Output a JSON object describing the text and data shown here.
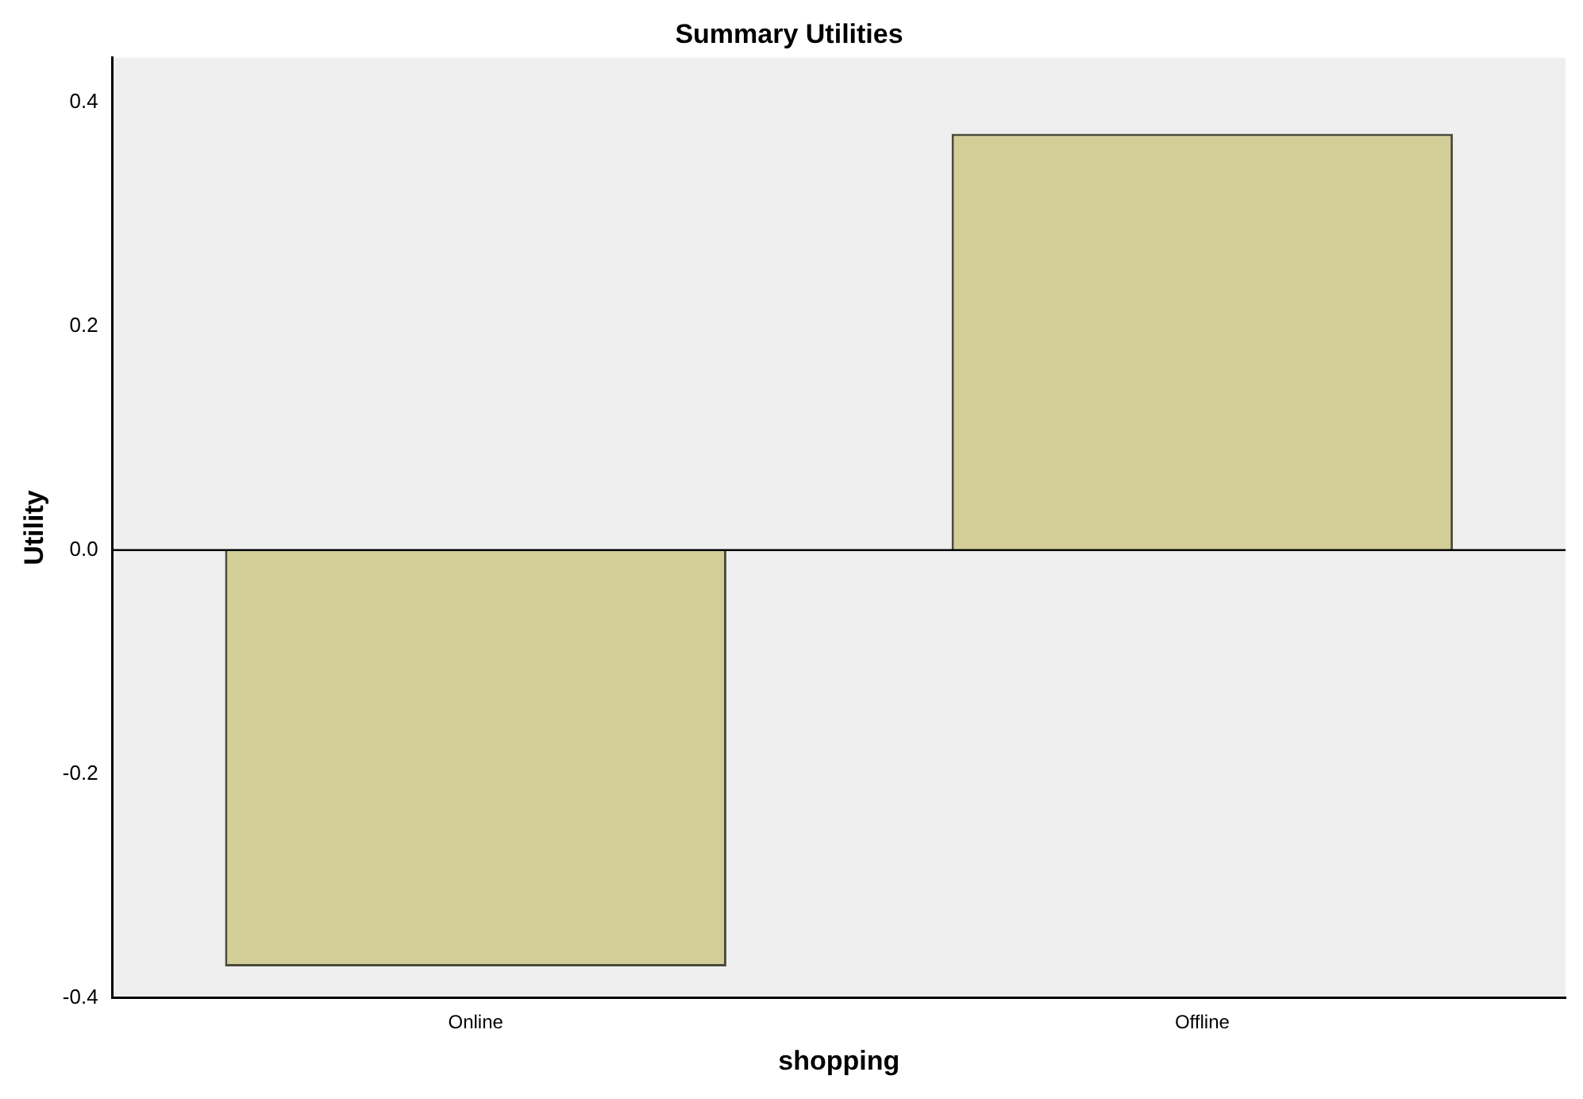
{
  "chart_data": {
    "type": "bar",
    "title": "Summary Utilities",
    "xlabel": "shopping",
    "ylabel": "Utility",
    "categories": [
      "Online",
      "Offline"
    ],
    "values": [
      -0.372,
      0.372
    ],
    "color": "#d3ce98",
    "ylim": [
      -0.4,
      0.44
    ],
    "yticks": [
      {
        "value": -0.4,
        "label": "-0.4"
      },
      {
        "value": -0.2,
        "label": "-0.2"
      },
      {
        "value": 0,
        "label": "0.0"
      },
      {
        "value": 0.2,
        "label": "0.2"
      },
      {
        "value": 0.4,
        "label": "0.4"
      }
    ],
    "ref_lines": [
      {
        "axis": "y",
        "value": 0,
        "color": "#000000"
      }
    ],
    "grid": false,
    "legend": false
  }
}
